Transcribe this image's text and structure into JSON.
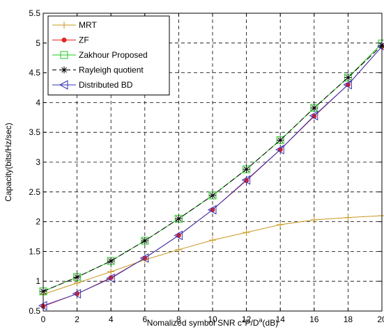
{
  "chart_data": {
    "type": "line",
    "title": "",
    "xlabel": "Nomalized symbol SNR c*P/D",
    "xlabel_superscript": "a",
    "xlabel_suffix": "(dB)",
    "ylabel": "Capacity(bits/Hz/sec)",
    "xlim": [
      0,
      20
    ],
    "ylim": [
      0.5,
      5.5
    ],
    "xticks": [
      0,
      2,
      4,
      6,
      8,
      10,
      12,
      14,
      16,
      18,
      20
    ],
    "yticks": [
      0.5,
      1,
      1.5,
      2,
      2.5,
      3,
      3.5,
      4,
      4.5,
      5,
      5.5
    ],
    "xtick_labels": [
      "0",
      "2",
      "4",
      "6",
      "8",
      "10",
      "12",
      "14",
      "16",
      "18",
      "20"
    ],
    "ytick_labels": [
      "0.5",
      "1",
      "1.5",
      "2",
      "2.5",
      "3",
      "3.5",
      "4",
      "4.5",
      "5",
      "5.5"
    ],
    "grid": "dashed",
    "legend_position": "top-left",
    "x": [
      0,
      2,
      4,
      6,
      8,
      10,
      12,
      14,
      16,
      18,
      20
    ],
    "series": [
      {
        "name": "MRT",
        "color": "#c8961e",
        "marker": "plus",
        "dash": "solid",
        "values": [
          0.78,
          0.97,
          1.16,
          1.36,
          1.53,
          1.69,
          1.82,
          1.95,
          2.03,
          2.07,
          2.1
        ]
      },
      {
        "name": "ZF",
        "color": "#e52222",
        "marker": "dot",
        "dash": "solid",
        "values": [
          0.58,
          0.79,
          1.06,
          1.39,
          1.77,
          2.2,
          2.69,
          3.21,
          3.77,
          4.3,
          4.94
        ]
      },
      {
        "name": "Zakhour Proposed",
        "color": "#1ec81e",
        "marker": "square",
        "dash": "solid",
        "values": [
          0.83,
          1.07,
          1.34,
          1.68,
          2.05,
          2.44,
          2.88,
          3.37,
          3.91,
          4.42,
          4.99
        ]
      },
      {
        "name": "Rayleigh quotient",
        "color": "#000000",
        "marker": "asterisk",
        "dash": "dashed",
        "values": [
          0.83,
          1.07,
          1.34,
          1.68,
          2.05,
          2.44,
          2.88,
          3.37,
          3.91,
          4.42,
          4.96
        ]
      },
      {
        "name": "Distributed BD",
        "color": "#3232b4",
        "marker": "triangle-left",
        "dash": "solid",
        "values": [
          0.59,
          0.79,
          1.05,
          1.39,
          1.77,
          2.2,
          2.7,
          3.21,
          3.78,
          4.3,
          4.94
        ]
      }
    ]
  }
}
